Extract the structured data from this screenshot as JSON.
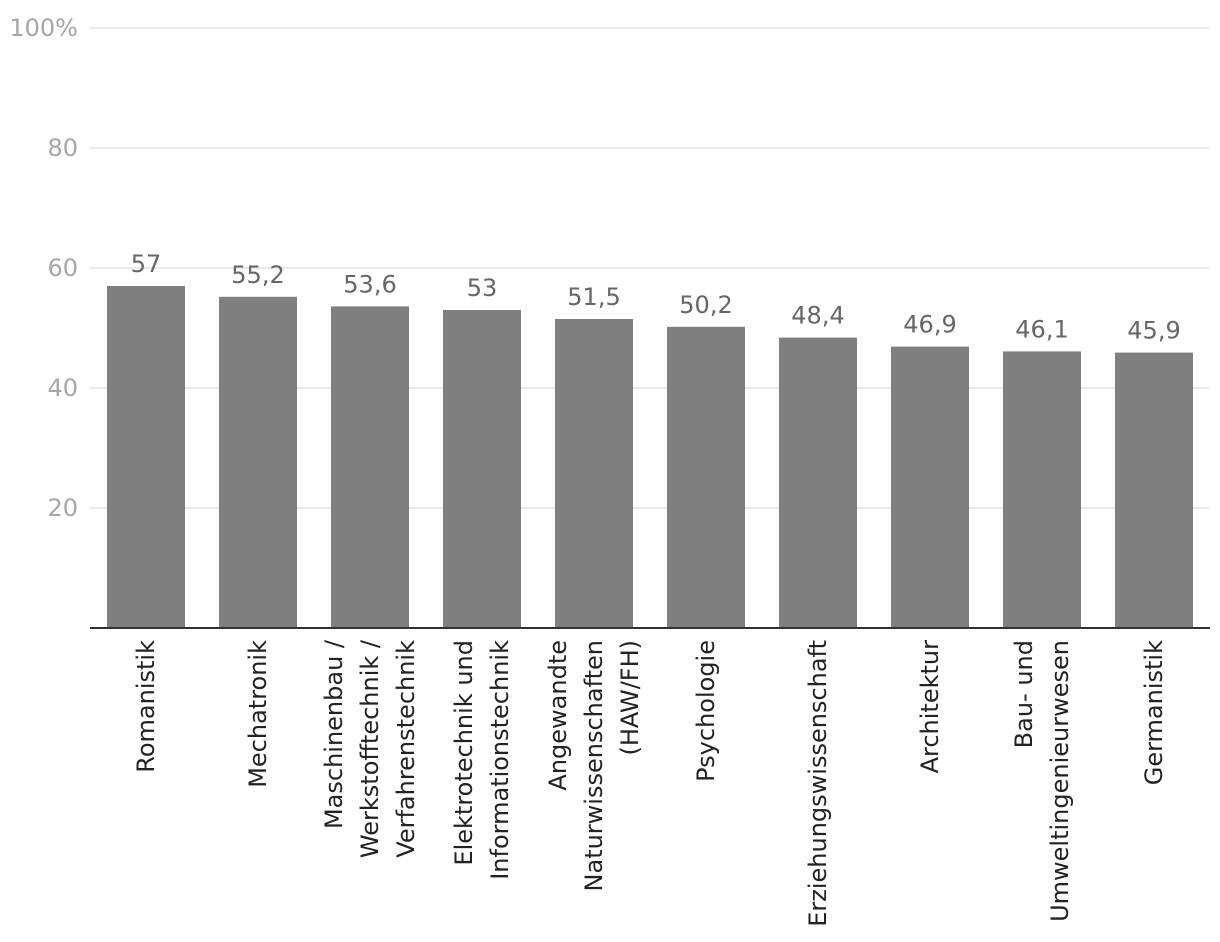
{
  "chart_data": {
    "type": "bar",
    "categories": [
      [
        "Romanistik"
      ],
      [
        "Mechatronik"
      ],
      [
        "Maschinenbau /",
        "Werkstofftechnik /",
        "Verfahrenstechnik"
      ],
      [
        "Elektrotechnik und",
        "Informationstechnik"
      ],
      [
        "Angewandte",
        "Naturwissenschaften",
        "(HAW/FH)"
      ],
      [
        "Psychologie"
      ],
      [
        "Erziehungswissenschaft"
      ],
      [
        "Architektur"
      ],
      [
        "Bau- und",
        "Umweltingenieurwesen"
      ],
      [
        "Germanistik"
      ]
    ],
    "values": [
      57,
      55.2,
      53.6,
      53,
      51.5,
      50.2,
      48.4,
      46.9,
      46.1,
      45.9
    ],
    "value_labels": [
      "57",
      "55,2",
      "53,6",
      "53",
      "51,5",
      "50,2",
      "48,4",
      "46,9",
      "46,1",
      "45,9"
    ],
    "y_ticks": [
      20,
      40,
      60,
      80,
      100
    ],
    "y_tick_labels": [
      "20",
      "40",
      "60",
      "80",
      "100%"
    ],
    "ylim": [
      0,
      100
    ],
    "grid": true,
    "bar_color": "#7f7f7f"
  }
}
